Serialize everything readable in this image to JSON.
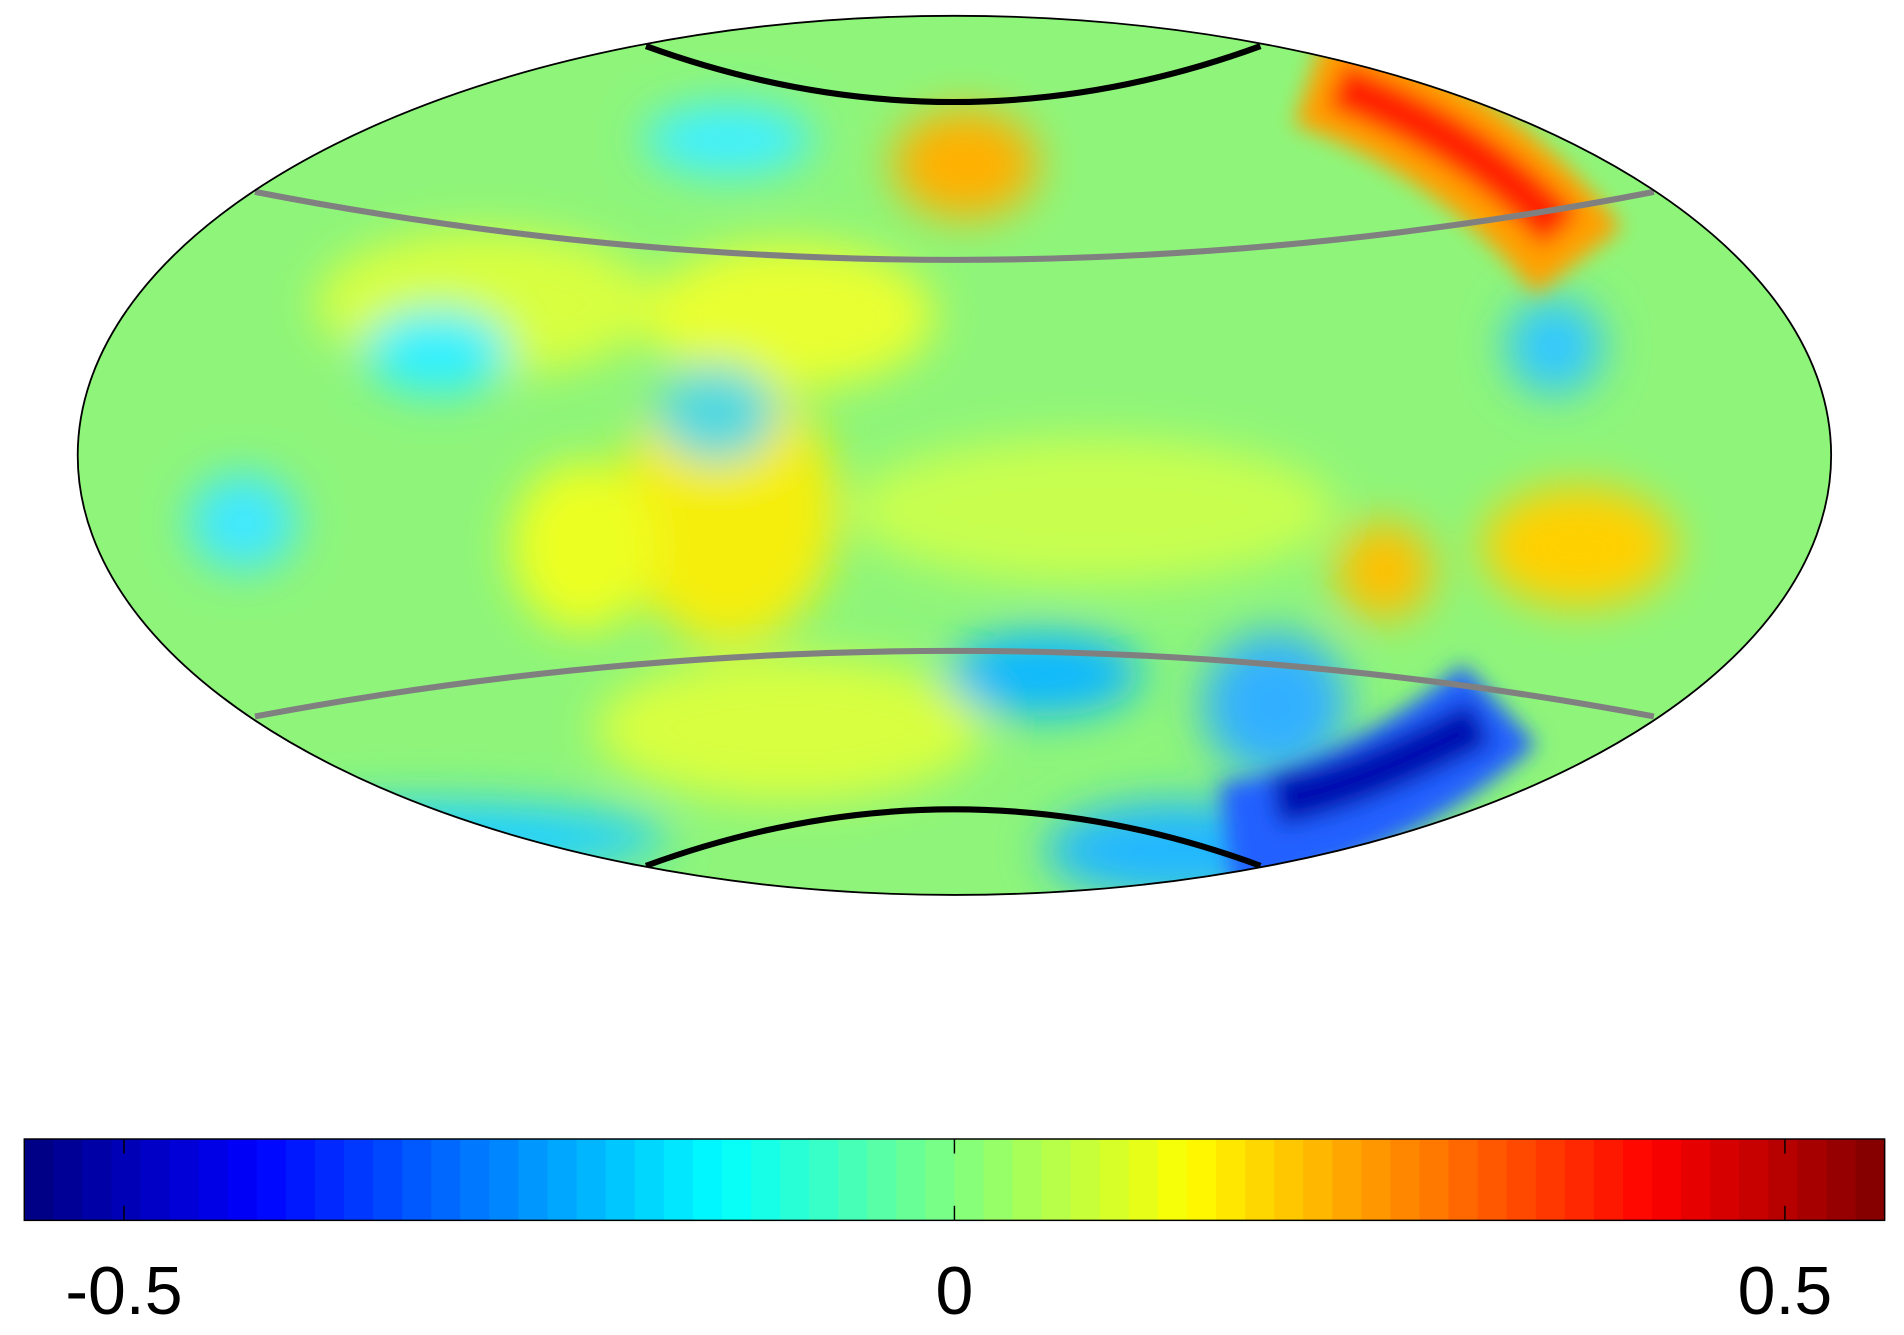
{
  "chart_data": {
    "type": "map",
    "projection": "hammer",
    "colormap": "jet",
    "levels": 64,
    "clim": [
      -0.56,
      0.56
    ],
    "colorbar_ticks": [
      -0.5,
      0,
      0.5
    ]
  }
}
